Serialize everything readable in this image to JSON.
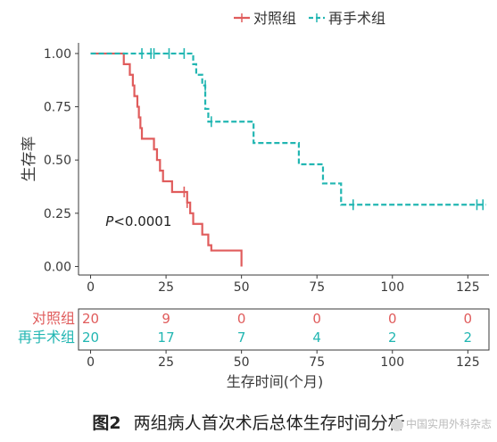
{
  "colors": {
    "control": "#e05c5c",
    "retreat": "#22b6b2",
    "axis": "#3a3a3a"
  },
  "caption": {
    "figure_label": "图2",
    "text": "两组病人首次术后总体生存时间分析"
  },
  "watermark": "中国实用外科杂志",
  "risk_table": {
    "x_ticks": [
      0,
      25,
      50,
      75,
      100,
      125
    ],
    "rows": [
      {
        "label": "对照组",
        "color": "#e05c5c",
        "values": [
          "20",
          "9",
          "0",
          "0",
          "0",
          "0"
        ]
      },
      {
        "label": "再手术组",
        "color": "#22b6b2",
        "values": [
          "20",
          "17",
          "7",
          "4",
          "2",
          "2"
        ]
      }
    ]
  },
  "chart_data": {
    "type": "line",
    "subtype": "kaplan-meier step curve",
    "ylabel": "生存率",
    "xlabel": "生存时间(个月)",
    "xlim": [
      -4,
      132
    ],
    "ylim": [
      -0.04,
      1.05
    ],
    "x_ticks": [
      0,
      25,
      50,
      75,
      100,
      125
    ],
    "y_ticks": [
      0.0,
      0.25,
      0.5,
      0.75,
      1.0
    ],
    "y_tick_labels": [
      "0.00",
      "0.25",
      "0.50",
      "0.75",
      "1.00"
    ],
    "grid": false,
    "legend_position": "top",
    "annotation": {
      "text_italic": "P",
      "text": "<0.0001",
      "x": 2,
      "y": 0.19
    },
    "series": [
      {
        "name": "对照组",
        "color": "#e05c5c",
        "style": "solid",
        "steps": [
          [
            0,
            1.0
          ],
          [
            11,
            0.95
          ],
          [
            13,
            0.9
          ],
          [
            14,
            0.85
          ],
          [
            14.5,
            0.8
          ],
          [
            15.5,
            0.75
          ],
          [
            16,
            0.7
          ],
          [
            16.5,
            0.65
          ],
          [
            17,
            0.6
          ],
          [
            21,
            0.55
          ],
          [
            22,
            0.5
          ],
          [
            23,
            0.45
          ],
          [
            24,
            0.4
          ],
          [
            27,
            0.35
          ],
          [
            32,
            0.3
          ],
          [
            33,
            0.25
          ],
          [
            34,
            0.2
          ],
          [
            37,
            0.15
          ],
          [
            39,
            0.1
          ],
          [
            40,
            0.075
          ],
          [
            50,
            0.075
          ],
          [
            50,
            0.0
          ]
        ],
        "censored": [
          [
            31,
            0.35
          ],
          [
            32,
            0.3
          ]
        ]
      },
      {
        "name": "再手术组",
        "color": "#22b6b2",
        "style": "dashed",
        "steps": [
          [
            0,
            1.0
          ],
          [
            33,
            1.0
          ],
          [
            34,
            0.95
          ],
          [
            35,
            0.9
          ],
          [
            37,
            0.85
          ],
          [
            38,
            0.74
          ],
          [
            39,
            0.68
          ],
          [
            45,
            0.68
          ],
          [
            54,
            0.58
          ],
          [
            68,
            0.58
          ],
          [
            69,
            0.48
          ],
          [
            75,
            0.48
          ],
          [
            77,
            0.39
          ],
          [
            82,
            0.39
          ],
          [
            83,
            0.29
          ],
          [
            131,
            0.29
          ]
        ],
        "censored": [
          [
            17,
            1.0
          ],
          [
            20,
            1.0
          ],
          [
            21,
            1.0
          ],
          [
            26,
            1.0
          ],
          [
            31,
            1.0
          ],
          [
            38,
            0.85
          ],
          [
            40,
            0.68
          ],
          [
            87,
            0.29
          ],
          [
            128,
            0.29
          ],
          [
            130,
            0.29
          ]
        ]
      }
    ]
  }
}
